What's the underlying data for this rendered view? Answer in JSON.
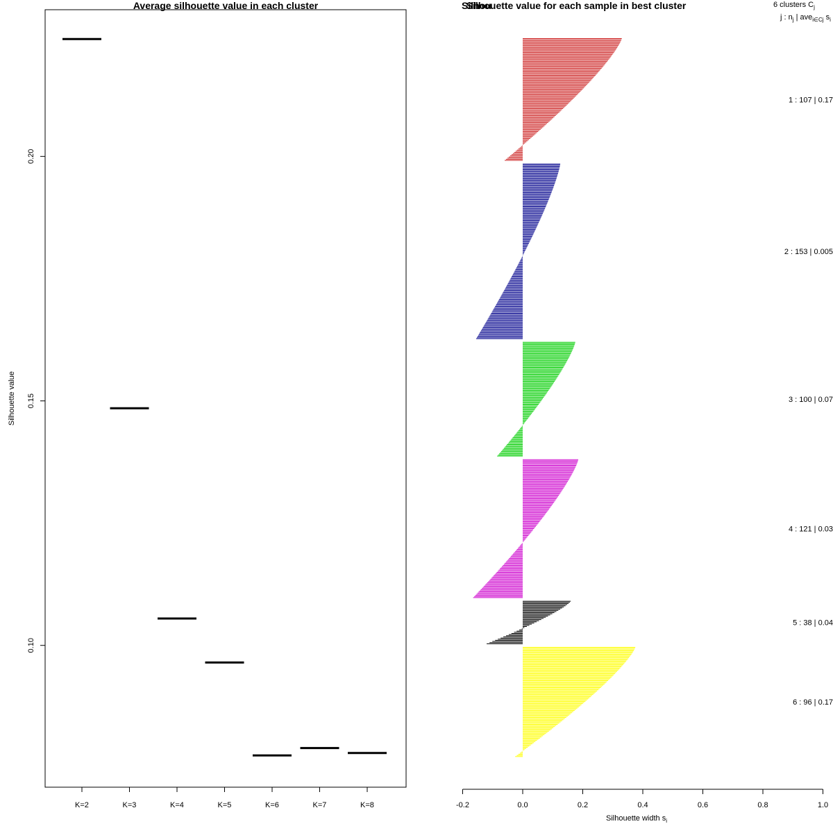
{
  "chart_data": [
    {
      "type": "line",
      "title": "Average silhouette value in each cluster",
      "xlabel": "",
      "ylabel": "Silhouette value",
      "categories": [
        "K=2",
        "K=3",
        "K=4",
        "K=5",
        "K=6",
        "K=7",
        "K=8"
      ],
      "values": [
        0.224,
        0.1485,
        0.1055,
        0.0965,
        0.0775,
        0.079,
        0.078
      ],
      "y_ticks": [
        "0.10",
        "0.15",
        "0.20"
      ],
      "ylim": [
        0.071,
        0.23
      ]
    },
    {
      "type": "bar",
      "title": "Silhouette value for each sample in best cluster",
      "title_overlay": "Silhou",
      "xlabel": "Silhouette width s",
      "xlabel_sub": "i",
      "xlim": [
        -0.2,
        1.0
      ],
      "x_ticks": [
        "-0.2",
        "0.0",
        "0.2",
        "0.4",
        "0.6",
        "0.8",
        "1.0"
      ],
      "legend": {
        "header_line1": "6  clusters  C",
        "header_line1_sub": "j",
        "header_line2_a": "j :  n",
        "header_line2_sub_a": "j",
        "header_line2_b": " | ave",
        "header_line2_sub_b": "i∈Cj",
        "header_line2_c": "  s",
        "header_line2_sub_c": "i"
      },
      "clusters": [
        {
          "id": 1,
          "n": 107,
          "avg": "0.17",
          "label": "1 :   107  |  0.17",
          "color": "#cd2626",
          "min": -0.06,
          "max": 0.33
        },
        {
          "id": 2,
          "n": 153,
          "avg": "0.005",
          "label": "2 :   153  |  0.005",
          "color": "#00008b",
          "min": -0.155,
          "max": 0.125
        },
        {
          "id": 3,
          "n": 100,
          "avg": "0.07",
          "label": "3 :   100  |  0.07",
          "color": "#00cd00",
          "min": -0.085,
          "max": 0.175
        },
        {
          "id": 4,
          "n": 121,
          "avg": "0.03",
          "label": "4 :   121  |  0.03",
          "color": "#cd00cd",
          "min": -0.165,
          "max": 0.185
        },
        {
          "id": 5,
          "n": 38,
          "avg": "0.04",
          "label": "5 :   38  |  0.04",
          "color": "#000000",
          "min": -0.12,
          "max": 0.16
        },
        {
          "id": 6,
          "n": 96,
          "avg": "0.17",
          "label": "6 :   96  |  0.17",
          "color": "#ffff00",
          "min": -0.025,
          "max": 0.375
        }
      ]
    }
  ]
}
